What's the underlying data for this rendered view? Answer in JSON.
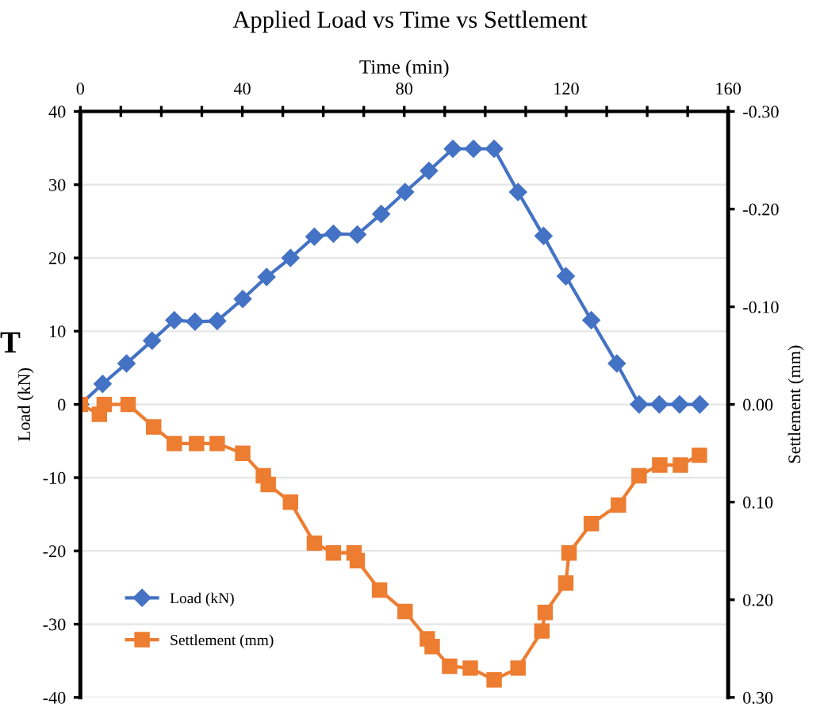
{
  "chart_data": {
    "type": "line",
    "title": "Applied Load vs Time vs Settlement",
    "xlabel": "Time (min)",
    "ylabel": "Load (kN)",
    "y2label": "Settlement (mm)",
    "annotations": [
      "T"
    ],
    "xlim": [
      0,
      160
    ],
    "xticks": [
      0,
      {
        "value": 10,
        "label": null
      },
      {
        "value": 20,
        "label": null
      },
      {
        "value": 30,
        "label": null
      },
      40,
      {
        "value": 50,
        "label": null
      },
      {
        "value": 60,
        "label": null
      },
      {
        "value": 70,
        "label": null
      },
      80,
      {
        "value": 90,
        "label": null
      },
      {
        "value": 100,
        "label": null
      },
      {
        "value": 110,
        "label": null
      },
      120,
      {
        "value": 130,
        "label": null
      },
      {
        "value": 140,
        "label": null
      },
      {
        "value": 150,
        "label": null
      },
      160
    ],
    "ylim": [
      -40,
      40
    ],
    "yticks": [
      -40,
      -30,
      -20,
      -10,
      0,
      10,
      20,
      30,
      40
    ],
    "y2lim": [
      0.3,
      -0.3
    ],
    "y2ticks": [
      {
        "value": -0.3,
        "label": "-0.30"
      },
      {
        "value": -0.2,
        "label": "-0.20"
      },
      {
        "value": -0.1,
        "label": "-0.10"
      },
      {
        "value": 0,
        "label": "0.00"
      },
      {
        "value": 0.1,
        "label": "0.10"
      },
      {
        "value": 0.2,
        "label": "0.20"
      },
      {
        "value": 0.3,
        "label": "0.30"
      }
    ],
    "grid": "y",
    "legend": "bottom left",
    "series": [
      {
        "name": "Load (kN)",
        "color": "#4472c4",
        "marker": "diamond",
        "x": [
          0,
          5.5,
          11.4,
          17.7,
          23.2,
          28.3,
          33.8,
          40.1,
          46,
          51.9,
          57.8,
          62.5,
          68.4,
          74.3,
          80.2,
          86.1,
          92,
          97.1,
          102.2,
          108.1,
          114.4,
          119.9,
          126.2,
          132.5,
          138,
          143,
          148,
          153
        ],
        "values": [
          0,
          2.8,
          5.6,
          8.7,
          11.5,
          11.3,
          11.4,
          14.4,
          17.4,
          20,
          22.9,
          23.3,
          23.2,
          26,
          29,
          31.9,
          34.9,
          34.9,
          34.9,
          29,
          23,
          17.5,
          11.5,
          5.6,
          0,
          0,
          0,
          0
        ]
      },
      {
        "name": "Settlement (mm)",
        "color": "#ed7d31",
        "marker": "square",
        "axis": "y2",
        "x": [
          0,
          4.7,
          5.9,
          11.8,
          18.1,
          23.2,
          28.7,
          33.8,
          40.1,
          45.2,
          46.4,
          51.9,
          57.8,
          62.5,
          67.6,
          68.4,
          73.9,
          80.2,
          85.7,
          86.9,
          91.2,
          96.3,
          102.2,
          108.1,
          114,
          114.8,
          119.9,
          120.7,
          126.2,
          132.9,
          138,
          143.1,
          148.2,
          152.9
        ],
        "values": [
          0,
          0.01,
          0,
          0,
          0.023,
          0.04,
          0.04,
          0.04,
          0.05,
          0.073,
          0.082,
          0.1,
          0.142,
          0.152,
          0.152,
          0.16,
          0.19,
          0.212,
          0.24,
          0.248,
          0.268,
          0.27,
          0.282,
          0.27,
          0.232,
          0.213,
          0.183,
          0.152,
          0.122,
          0.103,
          0.073,
          0.062,
          0.062,
          0.052
        ]
      }
    ]
  }
}
